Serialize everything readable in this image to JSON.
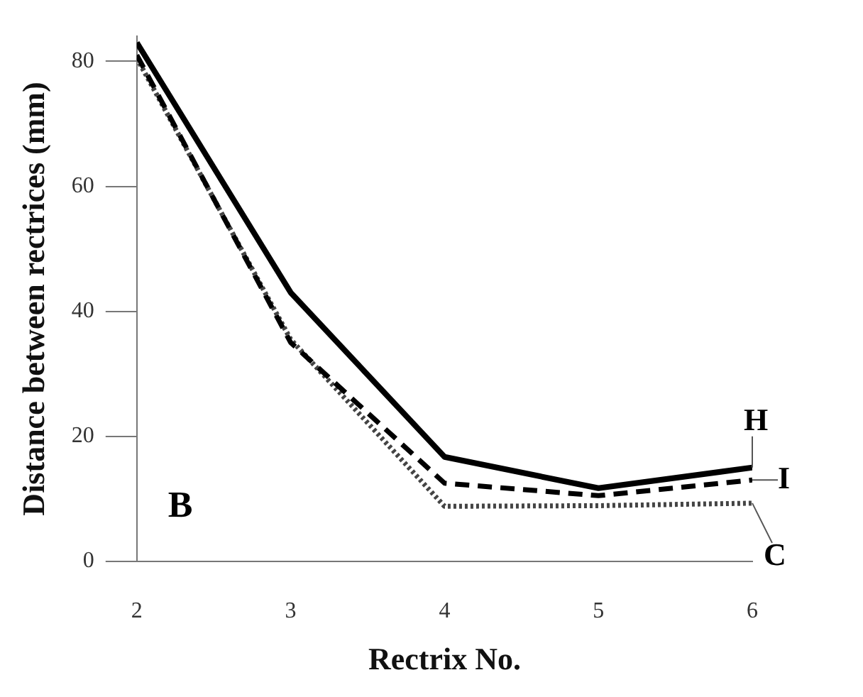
{
  "chart_data": {
    "type": "line",
    "xlabel": "Rectrix No.",
    "ylabel": "Distance between rectrices (mm)",
    "x": [
      2,
      3,
      4,
      5,
      6
    ],
    "xlim": [
      2,
      6
    ],
    "xticks": [
      2,
      3,
      4,
      5,
      6
    ],
    "ylim": [
      0,
      84
    ],
    "yticks": [
      0,
      20,
      40,
      60,
      80
    ],
    "grid": false,
    "legend": false,
    "marker": "none",
    "annotations": [
      "B"
    ],
    "series": [
      {
        "name": "H",
        "color": "#000000",
        "line_style": "solid",
        "values": [
          83,
          43,
          16.7,
          11.7,
          15
        ]
      },
      {
        "name": "I",
        "color": "#000000",
        "line_style": "dashed",
        "values": [
          81,
          35,
          12.5,
          10.5,
          13
        ]
      },
      {
        "name": "C",
        "color": "#444444",
        "line_style": "dotted",
        "values": [
          80.5,
          35.5,
          8.8,
          8.9,
          9.3
        ]
      }
    ]
  }
}
